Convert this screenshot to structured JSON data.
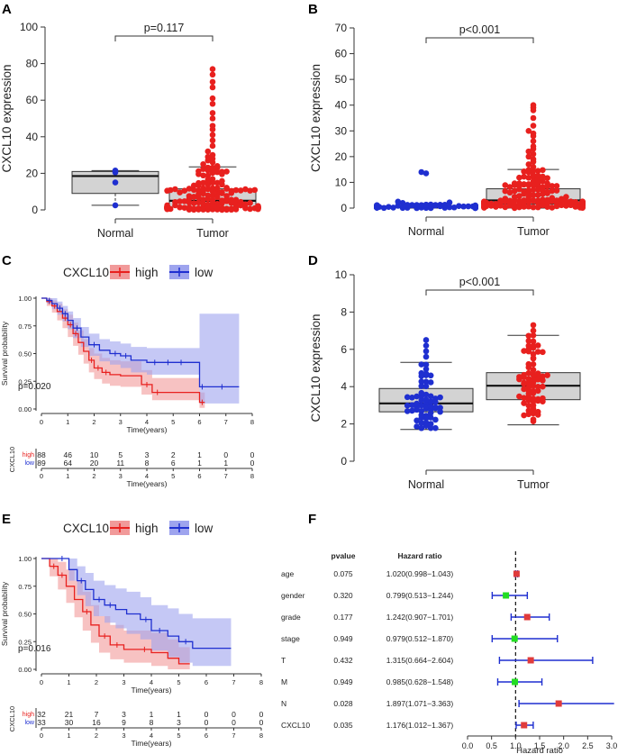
{
  "colors": {
    "red": "#e8201e",
    "blue": "#1f2fd0",
    "green": "#22dd22",
    "redband": "#f19a9a",
    "blueband": "#9ea4ee",
    "box": "#d3d3d3",
    "sig": "#e03b3b"
  },
  "chart_data": [
    {
      "panel": "A",
      "type": "box-dotplot",
      "categories": [
        "Normal",
        "Tumor"
      ],
      "ylabel": "CXCL10 expression",
      "ylim": [
        0,
        100
      ],
      "yticks": [
        0,
        20,
        40,
        60,
        80,
        100
      ],
      "pvalue": "p=0.117",
      "boxes": [
        {
          "name": "Normal",
          "min": 2.5,
          "q1": 9,
          "median": 18.5,
          "q3": 21,
          "max": 21.5,
          "color": "blue",
          "points": [
            2.5,
            15,
            20.5,
            21.5
          ]
        },
        {
          "name": "Tumor",
          "min": 0,
          "q1": 1.5,
          "median": 5,
          "q3": 11.5,
          "max": 23.5,
          "color": "red",
          "n_points": 150,
          "outliers": [
            24,
            25,
            26,
            27,
            28,
            29,
            30,
            32,
            35,
            38,
            41,
            44,
            46,
            50,
            53,
            58,
            61,
            67,
            70,
            74,
            77
          ]
        }
      ]
    },
    {
      "panel": "B",
      "type": "box-dotplot",
      "categories": [
        "Normal",
        "Tumor"
      ],
      "ylabel": "CXCL10 expression",
      "ylim": [
        0,
        70
      ],
      "yticks": [
        0,
        10,
        20,
        30,
        40,
        50,
        60,
        70
      ],
      "pvalue": "p<0.001",
      "boxes": [
        {
          "name": "Normal",
          "min": 0,
          "q1": 0.2,
          "median": 0.4,
          "q3": 0.8,
          "max": 1.5,
          "color": "blue",
          "n_points": 90,
          "outliers": [
            2,
            2.2,
            2.5,
            13.5,
            14
          ]
        },
        {
          "name": "Tumor",
          "min": 0,
          "q1": 1.5,
          "median": 3,
          "q3": 7.5,
          "max": 15,
          "color": "red",
          "n_points": 150,
          "outliers": [
            16,
            17,
            18,
            19,
            20,
            21,
            22,
            23,
            24,
            26,
            28,
            29,
            30,
            32,
            35,
            38,
            39,
            40
          ]
        }
      ]
    },
    {
      "panel": "C",
      "type": "km",
      "legend_title": "CXCL10",
      "legend": [
        "high",
        "low"
      ],
      "xlabel": "Time(years)",
      "ylabel": "Survival probability",
      "xlim": [
        0,
        8
      ],
      "xticks": [
        0,
        1,
        2,
        3,
        4,
        5,
        6,
        7,
        8
      ],
      "yticks": [
        "0.00",
        "0.25",
        "0.50",
        "0.75",
        "1.00"
      ],
      "pvalue": "p=0.020",
      "series": [
        {
          "name": "high",
          "times": [
            0,
            0.2,
            0.4,
            0.6,
            0.8,
            1.0,
            1.2,
            1.4,
            1.6,
            1.8,
            2.0,
            2.3,
            2.6,
            3.0,
            3.4,
            3.8,
            4.2,
            4.6,
            5.0,
            5.4,
            6.0,
            6.2
          ],
          "surv": [
            1.0,
            0.97,
            0.93,
            0.88,
            0.82,
            0.76,
            0.68,
            0.6,
            0.52,
            0.44,
            0.37,
            0.33,
            0.31,
            0.3,
            0.3,
            0.22,
            0.15,
            0.15,
            0.15,
            0.15,
            0.06,
            0.06
          ],
          "lo": [
            1.0,
            0.93,
            0.87,
            0.8,
            0.73,
            0.65,
            0.57,
            0.49,
            0.41,
            0.33,
            0.27,
            0.23,
            0.21,
            0.2,
            0.2,
            0.13,
            0.08,
            0.08,
            0.08,
            0.08,
            0.01,
            0.01
          ],
          "hi": [
            1.0,
            1.0,
            0.98,
            0.95,
            0.9,
            0.85,
            0.78,
            0.71,
            0.63,
            0.55,
            0.5,
            0.46,
            0.44,
            0.43,
            0.43,
            0.35,
            0.28,
            0.28,
            0.28,
            0.28,
            0.15,
            0.15
          ]
        },
        {
          "name": "low",
          "times": [
            0,
            0.2,
            0.4,
            0.6,
            0.8,
            1.0,
            1.2,
            1.5,
            1.8,
            2.2,
            2.6,
            3.0,
            3.4,
            4.0,
            4.6,
            5.0,
            5.6,
            6.0,
            6.2,
            7.5
          ],
          "surv": [
            1.0,
            0.98,
            0.95,
            0.91,
            0.86,
            0.8,
            0.73,
            0.65,
            0.58,
            0.53,
            0.5,
            0.48,
            0.44,
            0.42,
            0.42,
            0.42,
            0.42,
            0.2,
            0.2,
            0.2
          ],
          "lo": [
            1.0,
            0.95,
            0.9,
            0.85,
            0.79,
            0.72,
            0.64,
            0.56,
            0.48,
            0.43,
            0.4,
            0.37,
            0.33,
            0.31,
            0.31,
            0.31,
            0.31,
            0.05,
            0.05,
            0.05
          ],
          "hi": [
            1.0,
            1.0,
            1.0,
            0.97,
            0.93,
            0.88,
            0.82,
            0.74,
            0.68,
            0.63,
            0.61,
            0.59,
            0.56,
            0.55,
            0.55,
            0.55,
            0.55,
            0.86,
            0.86,
            0.86
          ]
        }
      ],
      "risk_table": {
        "label": "CXCL10",
        "high": [
          "88",
          "46",
          "10",
          "5",
          "3",
          "2",
          "1",
          "0",
          "0"
        ],
        "low": [
          "89",
          "64",
          "20",
          "11",
          "8",
          "6",
          "1",
          "1",
          "0"
        ]
      }
    },
    {
      "panel": "D",
      "type": "box-dotplot",
      "categories": [
        "Normal",
        "Tumor"
      ],
      "ylabel": "CXCL10 expression",
      "ylim": [
        0,
        10
      ],
      "yticks": [
        0,
        2,
        4,
        6,
        8,
        10
      ],
      "pvalue": "p<0.001",
      "boxes": [
        {
          "name": "Normal",
          "min": 1.7,
          "q1": 2.65,
          "median": 3.1,
          "q3": 3.9,
          "max": 5.3,
          "color": "blue",
          "n_points": 60,
          "outliers": [
            5.6,
            5.9,
            6.2,
            6.5
          ]
        },
        {
          "name": "Tumor",
          "min": 1.95,
          "q1": 3.3,
          "median": 4.05,
          "q3": 4.75,
          "max": 6.75,
          "color": "red",
          "n_points": 70,
          "outliers": [
            7.0,
            7.3
          ]
        }
      ]
    },
    {
      "panel": "E",
      "type": "km",
      "legend_title": "CXCL10",
      "legend": [
        "high",
        "low"
      ],
      "xlabel": "Time(years)",
      "ylabel": "Survival probability",
      "xlim": [
        0,
        8
      ],
      "xticks": [
        0,
        1,
        2,
        3,
        4,
        5,
        6,
        7,
        8
      ],
      "yticks": [
        "0.00",
        "0.25",
        "0.50",
        "0.75",
        "1.00"
      ],
      "pvalue": "p=0.016",
      "series": [
        {
          "name": "high",
          "times": [
            0,
            0.3,
            0.6,
            0.9,
            1.2,
            1.5,
            1.8,
            2.1,
            2.5,
            3.0,
            3.5,
            4.0,
            4.6,
            5.0,
            5.4
          ],
          "surv": [
            1.0,
            0.93,
            0.85,
            0.75,
            0.63,
            0.52,
            0.4,
            0.3,
            0.22,
            0.18,
            0.18,
            0.15,
            0.1,
            0.05,
            0.05
          ],
          "lo": [
            1.0,
            0.84,
            0.72,
            0.6,
            0.47,
            0.35,
            0.24,
            0.15,
            0.09,
            0.06,
            0.06,
            0.03,
            0.0,
            0.0,
            0.0
          ],
          "hi": [
            1.0,
            1.0,
            0.97,
            0.9,
            0.8,
            0.7,
            0.58,
            0.48,
            0.4,
            0.35,
            0.35,
            0.33,
            0.27,
            0.2,
            0.2
          ]
        },
        {
          "name": "low",
          "times": [
            0,
            0.5,
            1.0,
            1.3,
            1.6,
            1.9,
            2.3,
            2.7,
            3.1,
            3.6,
            4.0,
            4.6,
            5.0,
            5.5,
            6.0,
            6.9
          ],
          "surv": [
            1.0,
            1.0,
            0.9,
            0.8,
            0.72,
            0.63,
            0.58,
            0.54,
            0.5,
            0.45,
            0.35,
            0.3,
            0.25,
            0.19,
            0.19,
            0.19
          ],
          "lo": [
            1.0,
            1.0,
            0.8,
            0.67,
            0.57,
            0.48,
            0.42,
            0.37,
            0.32,
            0.27,
            0.17,
            0.11,
            0.06,
            0.03,
            0.03,
            0.03
          ],
          "hi": [
            1.0,
            1.0,
            1.0,
            0.93,
            0.87,
            0.8,
            0.76,
            0.73,
            0.7,
            0.65,
            0.58,
            0.55,
            0.5,
            0.46,
            0.46,
            0.46
          ]
        }
      ],
      "risk_table": {
        "label": "CXCL10",
        "high": [
          "32",
          "21",
          "7",
          "3",
          "1",
          "1",
          "0",
          "0",
          "0"
        ],
        "low": [
          "33",
          "30",
          "16",
          "9",
          "8",
          "3",
          "0",
          "0",
          "0"
        ]
      }
    },
    {
      "panel": "F",
      "type": "forest",
      "col_pvalue": "pvalue",
      "col_hr": "Hazard ratio",
      "xlabel": "Hazard ratio",
      "xlim": [
        0,
        3.0
      ],
      "xticks": [
        "0.0",
        "0.5",
        "1.0",
        "1.5",
        "2.0",
        "2.5",
        "3.0"
      ],
      "rows": [
        {
          "name": "age",
          "pvalue": "0.075",
          "hr_text": "1.020(0.998−1.043)",
          "hr": 1.02,
          "lo": 0.998,
          "hi": 1.043
        },
        {
          "name": "gender",
          "pvalue": "0.320",
          "hr_text": "0.799(0.513−1.244)",
          "hr": 0.799,
          "lo": 0.513,
          "hi": 1.244
        },
        {
          "name": "grade",
          "pvalue": "0.177",
          "hr_text": "1.242(0.907−1.701)",
          "hr": 1.242,
          "lo": 0.907,
          "hi": 1.701
        },
        {
          "name": "stage",
          "pvalue": "0.949",
          "hr_text": "0.979(0.512−1.870)",
          "hr": 0.979,
          "lo": 0.512,
          "hi": 1.87
        },
        {
          "name": "T",
          "pvalue": "0.432",
          "hr_text": "1.315(0.664−2.604)",
          "hr": 1.315,
          "lo": 0.664,
          "hi": 2.604
        },
        {
          "name": "M",
          "pvalue": "0.949",
          "hr_text": "0.985(0.628−1.548)",
          "hr": 0.985,
          "lo": 0.628,
          "hi": 1.548
        },
        {
          "name": "N",
          "pvalue": "0.028",
          "hr_text": "1.897(1.071−3.363)",
          "hr": 1.897,
          "lo": 1.071,
          "hi": 3.363
        },
        {
          "name": "CXCL10",
          "pvalue": "0.035",
          "hr_text": "1.176(1.012−1.367)",
          "hr": 1.176,
          "lo": 1.012,
          "hi": 1.367
        }
      ]
    }
  ]
}
